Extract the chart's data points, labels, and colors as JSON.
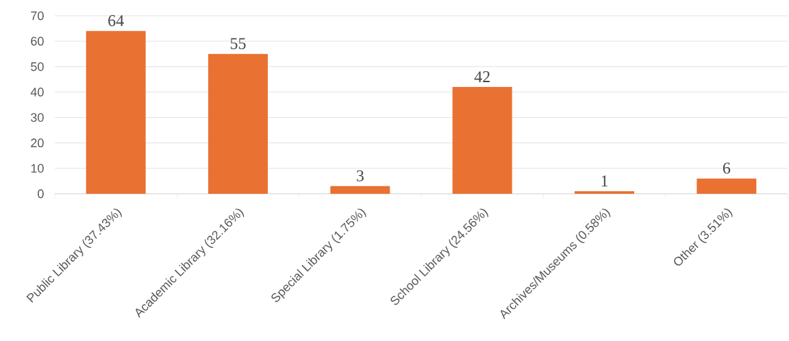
{
  "chart_data": {
    "type": "bar",
    "categories": [
      "Public Library (37.43%)",
      "Academic Library (32.16%)",
      "Special Library (1.75%)",
      "School Library (24.56%)",
      "Archives/Museums (0.58%)",
      "Other (3.51%)"
    ],
    "values": [
      64,
      55,
      3,
      42,
      1,
      6
    ],
    "color": "#e97132",
    "ylim": [
      0,
      70
    ],
    "yticks": [
      0,
      10,
      20,
      30,
      40,
      50,
      60,
      70
    ],
    "grid": "y",
    "data_labels": true
  }
}
